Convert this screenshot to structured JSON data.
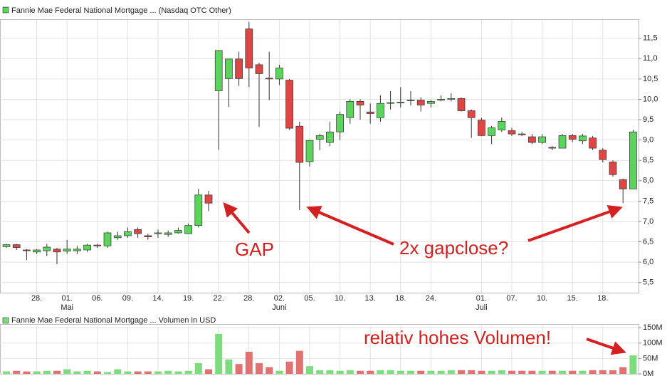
{
  "chart_data": [
    {
      "type": "candlestick",
      "title": "Fannie Mae Federal National Mortgage ... (Nasdaq OTC Other)",
      "color": "#5ad45a",
      "up_color": "#5ad45a",
      "down_color": "#e04545",
      "categories": [
        null,
        null,
        null,
        "28.",
        null,
        null,
        "01.",
        null,
        null,
        "06.",
        null,
        null,
        "09.",
        null,
        null,
        "14.",
        null,
        null,
        "19.",
        null,
        null,
        "22.",
        null,
        null,
        "28.",
        null,
        null,
        "02.",
        null,
        null,
        "05.",
        null,
        null,
        "10.",
        null,
        null,
        "13.",
        null,
        null,
        "18.",
        null,
        null,
        "24.",
        null,
        null,
        null,
        null,
        "01.",
        null,
        null,
        "07.",
        null,
        null,
        "10.",
        null,
        null,
        "15.",
        null,
        null,
        "18.",
        null,
        null,
        null
      ],
      "month_labels": [
        null,
        null,
        null,
        null,
        null,
        null,
        "Mai",
        null,
        null,
        null,
        null,
        null,
        null,
        null,
        null,
        null,
        null,
        null,
        null,
        null,
        null,
        null,
        null,
        null,
        null,
        null,
        null,
        "Juni",
        null,
        null,
        null,
        null,
        null,
        null,
        null,
        null,
        null,
        null,
        null,
        null,
        null,
        null,
        null,
        null,
        null,
        null,
        null,
        "Juli",
        null,
        null,
        null,
        null,
        null,
        null,
        null,
        null,
        null,
        null,
        null,
        null,
        null,
        null,
        null
      ],
      "open": [
        6.38,
        6.43,
        6.3,
        6.25,
        6.28,
        6.32,
        6.27,
        6.28,
        6.3,
        6.42,
        6.4,
        6.6,
        6.65,
        6.8,
        6.65,
        6.7,
        6.68,
        6.72,
        6.7,
        6.9,
        7.65,
        10.21,
        10.51,
        10.99,
        11.73,
        10.85,
        10.52,
        10.5,
        10.47,
        9.34,
        8.47,
        9.02,
        8.94,
        9.2,
        9.55,
        9.95,
        9.69,
        9.55,
        9.9,
        9.92,
        9.98,
        9.98,
        9.9,
        9.98,
        10.0,
        10.02,
        9.72,
        9.49,
        9.11,
        9.25,
        9.23,
        9.15,
        9.08,
        8.94,
        8.82,
        8.8,
        9.11,
        8.98,
        9.05,
        8.75,
        8.46,
        8.03,
        7.8
      ],
      "high": [
        6.45,
        6.45,
        6.32,
        6.32,
        6.45,
        6.35,
        6.55,
        6.4,
        6.45,
        6.45,
        6.75,
        6.75,
        6.85,
        6.85,
        6.7,
        6.8,
        6.78,
        6.85,
        6.95,
        7.8,
        7.75,
        11.2,
        10.99,
        11.17,
        11.9,
        10.9,
        11.17,
        10.85,
        10.5,
        9.45,
        9.0,
        9.15,
        9.45,
        9.7,
        10.0,
        10.0,
        9.9,
        10.1,
        10.2,
        10.3,
        10.2,
        10.05,
        9.98,
        10.1,
        10.15,
        10.05,
        9.75,
        9.55,
        9.35,
        9.55,
        9.3,
        9.2,
        9.15,
        9.15,
        8.85,
        9.15,
        9.15,
        9.15,
        9.1,
        8.8,
        8.5,
        8.05,
        9.25
      ],
      "low": [
        6.35,
        6.3,
        6.05,
        6.2,
        6.15,
        5.95,
        6.2,
        6.2,
        6.25,
        6.35,
        6.35,
        6.55,
        6.6,
        6.6,
        6.55,
        6.6,
        6.62,
        6.7,
        6.7,
        6.85,
        7.25,
        8.76,
        9.81,
        10.33,
        10.3,
        9.32,
        9.98,
        10.35,
        9.25,
        7.28,
        8.35,
        8.75,
        8.85,
        9.0,
        9.4,
        9.5,
        9.4,
        9.45,
        9.75,
        9.8,
        9.85,
        9.7,
        9.8,
        9.95,
        9.95,
        9.7,
        9.05,
        9.1,
        8.9,
        9.2,
        9.1,
        9.1,
        8.9,
        8.9,
        8.75,
        8.8,
        8.95,
        8.9,
        8.75,
        8.45,
        8.1,
        7.45,
        7.8
      ],
      "close": [
        6.43,
        6.36,
        6.28,
        6.3,
        6.37,
        6.25,
        6.32,
        6.32,
        6.42,
        6.4,
        6.72,
        6.65,
        6.75,
        6.7,
        6.62,
        6.72,
        6.72,
        6.78,
        6.9,
        7.65,
        7.45,
        11.2,
        10.99,
        10.51,
        10.77,
        10.63,
        10.5,
        10.77,
        9.29,
        8.45,
        8.99,
        9.11,
        9.2,
        9.63,
        9.95,
        9.86,
        9.65,
        9.9,
        9.92,
        9.93,
        9.98,
        9.86,
        9.95,
        10.0,
        10.02,
        9.72,
        9.55,
        9.11,
        9.3,
        9.46,
        9.15,
        9.13,
        8.94,
        9.08,
        8.8,
        9.11,
        9.02,
        9.1,
        8.8,
        8.52,
        8.15,
        7.8,
        9.2
      ],
      "ylim": [
        5.25,
        11.95
      ],
      "yticks": [
        {
          "value": 5.5,
          "label": "5,5"
        },
        {
          "value": 6,
          "label": "6,0"
        },
        {
          "value": 6.5,
          "label": "6,5"
        },
        {
          "value": 7,
          "label": "7,0"
        },
        {
          "value": 7.5,
          "label": "7,5"
        },
        {
          "value": 8,
          "label": "8,0"
        },
        {
          "value": 8.5,
          "label": "8,5"
        },
        {
          "value": 9,
          "label": "9,0"
        },
        {
          "value": 9.5,
          "label": "9,5"
        },
        {
          "value": 10,
          "label": "10,0"
        },
        {
          "value": 10.5,
          "label": "10,5"
        },
        {
          "value": 11,
          "label": "11,0"
        },
        {
          "value": 11.5,
          "label": "11,5"
        }
      ],
      "grid": true,
      "annotations": [
        "GAP",
        "2x gapclose?"
      ]
    },
    {
      "type": "bar",
      "title": "Fannie Mae Federal National Mortgage ... Volumen in USD",
      "color": "#7ddc7d",
      "up_color": "#7ddc7d",
      "down_color": "#e07272",
      "values": [
        8,
        10,
        8,
        8,
        10,
        10,
        15,
        8,
        10,
        8,
        6,
        15,
        8,
        8,
        8,
        8,
        10,
        8,
        10,
        35,
        15,
        130,
        47,
        32,
        72,
        35,
        22,
        10,
        40,
        75,
        25,
        12,
        12,
        10,
        12,
        10,
        10,
        12,
        12,
        10,
        10,
        10,
        10,
        10,
        12,
        12,
        12,
        10,
        10,
        12,
        10,
        10,
        10,
        10,
        10,
        10,
        10,
        10,
        12,
        12,
        12,
        22,
        60
      ],
      "ylim": [
        0,
        155
      ],
      "yticks": [
        {
          "value": 0,
          "label": "0M"
        },
        {
          "value": 50,
          "label": "50M"
        },
        {
          "value": 100,
          "label": "100M"
        },
        {
          "value": 150,
          "label": "150M"
        }
      ],
      "grid": true,
      "annotations": [
        "relativ hohes Volumen!"
      ]
    }
  ]
}
